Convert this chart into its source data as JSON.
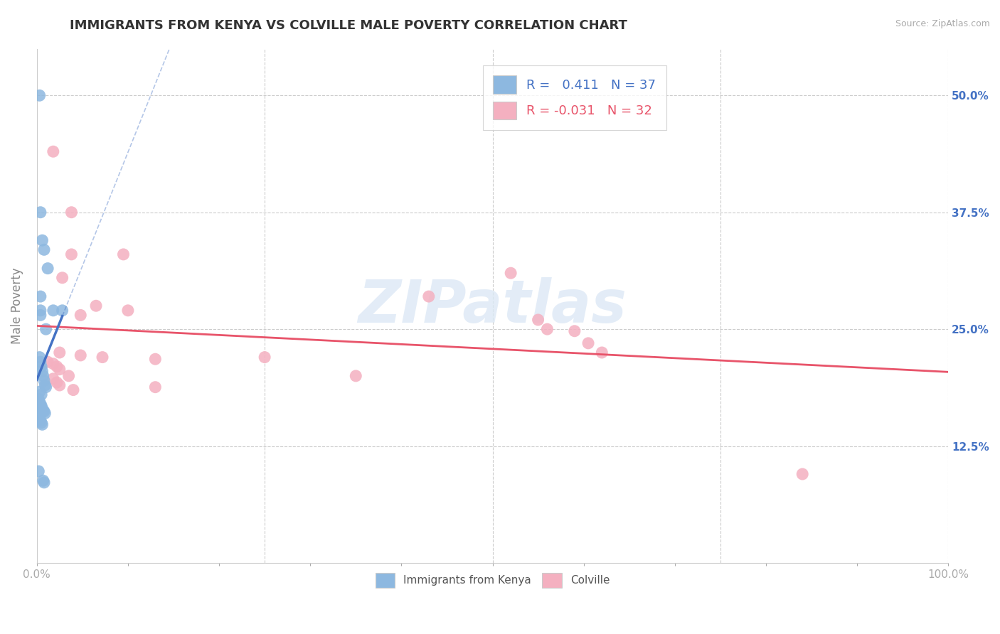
{
  "title": "IMMIGRANTS FROM KENYA VS COLVILLE MALE POVERTY CORRELATION CHART",
  "source": "Source: ZipAtlas.com",
  "ylabel": "Male Poverty",
  "xlim": [
    0.0,
    1.0
  ],
  "ylim": [
    0.0,
    0.55
  ],
  "xticks": [
    0.0,
    0.1,
    0.2,
    0.3,
    0.4,
    0.5,
    0.6,
    0.7,
    0.8,
    0.9,
    1.0
  ],
  "xticklabels_show": [
    "0.0%",
    "",
    "",
    "",
    "",
    "",
    "",
    "",
    "",
    "",
    "100.0%"
  ],
  "yticks": [
    0.0,
    0.125,
    0.25,
    0.375,
    0.5
  ],
  "yticklabels_right": [
    "",
    "12.5%",
    "25.0%",
    "37.5%",
    "50.0%"
  ],
  "grid_yticks": [
    0.125,
    0.25,
    0.375,
    0.5
  ],
  "legend_entries": [
    {
      "label": "Immigrants from Kenya",
      "color": "#aac7e8",
      "R": "0.411",
      "N": "37"
    },
    {
      "label": "Colville",
      "color": "#f4b8c8",
      "R": "-0.031",
      "N": "32"
    }
  ],
  "line_color_kenya": "#4472c4",
  "line_color_colville": "#e8546a",
  "scatter_color_kenya": "#8db8e0",
  "scatter_color_colville": "#f4b0c0",
  "background": "#ffffff",
  "grid_color": "#cccccc",
  "watermark_text": "ZIPatlas",
  "kenya_points": [
    [
      0.003,
      0.5
    ],
    [
      0.004,
      0.375
    ],
    [
      0.006,
      0.345
    ],
    [
      0.008,
      0.335
    ],
    [
      0.012,
      0.315
    ],
    [
      0.004,
      0.285
    ],
    [
      0.004,
      0.27
    ],
    [
      0.018,
      0.27
    ],
    [
      0.004,
      0.265
    ],
    [
      0.01,
      0.25
    ],
    [
      0.003,
      0.22
    ],
    [
      0.004,
      0.215
    ],
    [
      0.005,
      0.21
    ],
    [
      0.006,
      0.205
    ],
    [
      0.007,
      0.2
    ],
    [
      0.008,
      0.195
    ],
    [
      0.009,
      0.19
    ],
    [
      0.01,
      0.188
    ],
    [
      0.003,
      0.183
    ],
    [
      0.005,
      0.18
    ],
    [
      0.002,
      0.175
    ],
    [
      0.003,
      0.172
    ],
    [
      0.004,
      0.17
    ],
    [
      0.005,
      0.168
    ],
    [
      0.006,
      0.165
    ],
    [
      0.007,
      0.163
    ],
    [
      0.008,
      0.162
    ],
    [
      0.009,
      0.16
    ],
    [
      0.002,
      0.157
    ],
    [
      0.003,
      0.155
    ],
    [
      0.004,
      0.152
    ],
    [
      0.005,
      0.15
    ],
    [
      0.006,
      0.148
    ],
    [
      0.002,
      0.098
    ],
    [
      0.007,
      0.088
    ],
    [
      0.008,
      0.086
    ],
    [
      0.028,
      0.27
    ]
  ],
  "colville_points": [
    [
      0.018,
      0.44
    ],
    [
      0.038,
      0.375
    ],
    [
      0.038,
      0.33
    ],
    [
      0.095,
      0.33
    ],
    [
      0.028,
      0.305
    ],
    [
      0.065,
      0.275
    ],
    [
      0.1,
      0.27
    ],
    [
      0.048,
      0.265
    ],
    [
      0.025,
      0.225
    ],
    [
      0.048,
      0.222
    ],
    [
      0.072,
      0.22
    ],
    [
      0.13,
      0.218
    ],
    [
      0.012,
      0.215
    ],
    [
      0.018,
      0.213
    ],
    [
      0.022,
      0.21
    ],
    [
      0.025,
      0.207
    ],
    [
      0.035,
      0.2
    ],
    [
      0.018,
      0.197
    ],
    [
      0.022,
      0.193
    ],
    [
      0.025,
      0.19
    ],
    [
      0.13,
      0.188
    ],
    [
      0.04,
      0.185
    ],
    [
      0.25,
      0.22
    ],
    [
      0.43,
      0.285
    ],
    [
      0.52,
      0.31
    ],
    [
      0.55,
      0.26
    ],
    [
      0.56,
      0.25
    ],
    [
      0.59,
      0.248
    ],
    [
      0.605,
      0.235
    ],
    [
      0.62,
      0.225
    ],
    [
      0.84,
      0.095
    ],
    [
      0.35,
      0.2
    ]
  ],
  "title_color": "#333333",
  "title_fontsize": 13,
  "axis_label_color": "#888888",
  "right_tick_color": "#4472c4",
  "bottom_tick_color": "#aaaaaa"
}
